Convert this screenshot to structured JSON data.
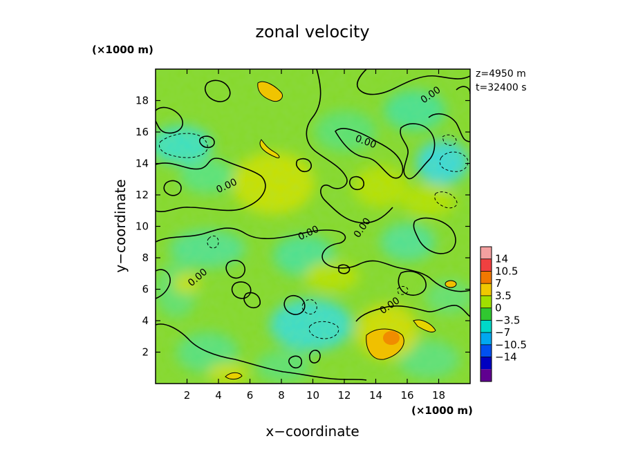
{
  "chart_data": {
    "type": "heatmap",
    "title": "zonal velocity",
    "xlabel": "x−coordinate",
    "ylabel": "y−coordinate",
    "x_unit": "(×1000 m)",
    "y_unit": "(×1000 m)",
    "info": [
      "z=4950  m",
      "t=32400 s"
    ],
    "xlim": [
      0,
      20
    ],
    "ylim": [
      0,
      20
    ],
    "x_ticks": [
      2,
      4,
      6,
      8,
      10,
      12,
      14,
      16,
      18
    ],
    "y_ticks": [
      2,
      4,
      6,
      8,
      10,
      12,
      14,
      16,
      18
    ],
    "x_tick_labels": [
      "2",
      "4",
      "6",
      "8",
      "10",
      "12",
      "14",
      "16",
      "18"
    ],
    "y_tick_labels": [
      "2",
      "4",
      "6",
      "8",
      "10",
      "12",
      "14",
      "16",
      "18"
    ],
    "colorbar": {
      "levels": [
        14,
        10.5,
        7,
        3.5,
        0,
        -3.5,
        -7,
        -10.5,
        -14
      ],
      "labels": [
        "14",
        "10.5",
        "7",
        "3.5",
        "0",
        "−3.5",
        "−7",
        "−10.5",
        "−14"
      ],
      "colors": [
        "#f4a0a0",
        "#f04040",
        "#f07800",
        "#f0c800",
        "#a0e000",
        "#30c830",
        "#00d8c8",
        "#00a8f0",
        "#0050f0",
        "#0000c0",
        "#600090"
      ]
    },
    "contour_labels": [
      {
        "text": "0.00",
        "x": 2.8,
        "y": 6.6,
        "angle": -40
      },
      {
        "text": "0.00",
        "x": 4.6,
        "y": 12.4,
        "angle": -25
      },
      {
        "text": "0.00",
        "x": 9.8,
        "y": 9.4,
        "angle": -25
      },
      {
        "text": "0.00",
        "x": 13.3,
        "y": 9.8,
        "angle": -55
      },
      {
        "text": "0.00",
        "x": 13.3,
        "y": 15.2,
        "angle": 20
      },
      {
        "text": "0.00",
        "x": 15.0,
        "y": 4.8,
        "angle": -35
      },
      {
        "text": "0.00",
        "x": 17.6,
        "y": 18.2,
        "angle": -35
      }
    ]
  }
}
